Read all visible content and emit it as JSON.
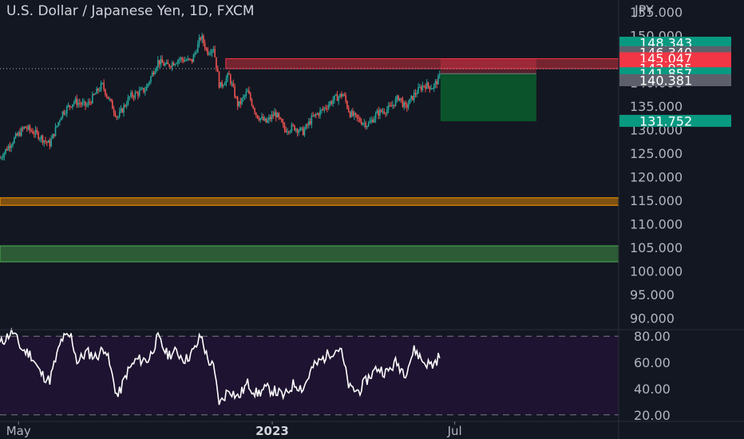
{
  "title": "U.S. Dollar / Japanese Yen, 1D, FXCM",
  "currency": "JPY",
  "colors": {
    "background": "#131722",
    "up": "#26a69a",
    "down": "#ef5350",
    "rsi_line": "#ffffff",
    "rsi_band": "#1e1330",
    "zone_orange": "#ff9800",
    "zone_green": "#4caf50",
    "badge_green": "#089981",
    "badge_red": "#f23645",
    "badge_gray": "#5d606b"
  },
  "chart_data": {
    "type": "candlestick",
    "title": "U.S. Dollar / Japanese Yen, 1D, FXCM",
    "ylim": [
      87.5,
      157.5
    ],
    "y_ticks": [
      "155.000",
      "150.000",
      "145.000",
      "140.000",
      "135.000",
      "130.000",
      "125.000",
      "120.000",
      "115.000",
      "110.000",
      "105.000",
      "100.000",
      "95.000",
      "90.000"
    ],
    "x_labels": [
      {
        "label": "May",
        "pos": 0.03,
        "bold": false
      },
      {
        "label": "2023",
        "pos": 0.44,
        "bold": true
      },
      {
        "label": "Jul",
        "pos": 0.735,
        "bold": false
      }
    ],
    "close_path": [
      {
        "t": 0.0,
        "v": 124.0
      },
      {
        "t": 0.02,
        "v": 127.5
      },
      {
        "t": 0.04,
        "v": 130.5
      },
      {
        "t": 0.06,
        "v": 129.0
      },
      {
        "t": 0.08,
        "v": 126.8
      },
      {
        "t": 0.1,
        "v": 133.5
      },
      {
        "t": 0.12,
        "v": 136.0
      },
      {
        "t": 0.14,
        "v": 135.0
      },
      {
        "t": 0.165,
        "v": 139.5
      },
      {
        "t": 0.19,
        "v": 132.5
      },
      {
        "t": 0.21,
        "v": 137.0
      },
      {
        "t": 0.235,
        "v": 138.5
      },
      {
        "t": 0.255,
        "v": 144.5
      },
      {
        "t": 0.27,
        "v": 143.5
      },
      {
        "t": 0.29,
        "v": 145.0
      },
      {
        "t": 0.31,
        "v": 144.5
      },
      {
        "t": 0.325,
        "v": 149.8
      },
      {
        "t": 0.335,
        "v": 146.5
      },
      {
        "t": 0.345,
        "v": 147.5
      },
      {
        "t": 0.355,
        "v": 139.0
      },
      {
        "t": 0.37,
        "v": 141.5
      },
      {
        "t": 0.385,
        "v": 135.0
      },
      {
        "t": 0.4,
        "v": 138.0
      },
      {
        "t": 0.415,
        "v": 133.0
      },
      {
        "t": 0.43,
        "v": 131.5
      },
      {
        "t": 0.445,
        "v": 133.5
      },
      {
        "t": 0.46,
        "v": 130.0
      },
      {
        "t": 0.475,
        "v": 130.5
      },
      {
        "t": 0.49,
        "v": 129.5
      },
      {
        "t": 0.505,
        "v": 132.5
      },
      {
        "t": 0.52,
        "v": 134.0
      },
      {
        "t": 0.54,
        "v": 136.5
      },
      {
        "t": 0.555,
        "v": 137.5
      },
      {
        "t": 0.565,
        "v": 133.5
      },
      {
        "t": 0.58,
        "v": 132.0
      },
      {
        "t": 0.595,
        "v": 131.0
      },
      {
        "t": 0.61,
        "v": 133.5
      },
      {
        "t": 0.63,
        "v": 134.5
      },
      {
        "t": 0.645,
        "v": 137.0
      },
      {
        "t": 0.655,
        "v": 134.5
      },
      {
        "t": 0.67,
        "v": 137.5
      },
      {
        "t": 0.685,
        "v": 139.5
      },
      {
        "t": 0.7,
        "v": 139.0
      },
      {
        "t": 0.712,
        "v": 141.4
      }
    ],
    "rsi": {
      "ylim": [
        15,
        85
      ],
      "levels": [
        80,
        20
      ],
      "ticks": [
        "80.00",
        "60.00",
        "40.00",
        "20.00"
      ],
      "path": [
        {
          "t": 0.0,
          "v": 74
        },
        {
          "t": 0.02,
          "v": 84
        },
        {
          "t": 0.035,
          "v": 70
        },
        {
          "t": 0.05,
          "v": 66
        },
        {
          "t": 0.065,
          "v": 52
        },
        {
          "t": 0.08,
          "v": 46
        },
        {
          "t": 0.1,
          "v": 78
        },
        {
          "t": 0.115,
          "v": 80
        },
        {
          "t": 0.125,
          "v": 60
        },
        {
          "t": 0.14,
          "v": 68
        },
        {
          "t": 0.155,
          "v": 64
        },
        {
          "t": 0.17,
          "v": 72
        },
        {
          "t": 0.19,
          "v": 33
        },
        {
          "t": 0.205,
          "v": 52
        },
        {
          "t": 0.22,
          "v": 62
        },
        {
          "t": 0.24,
          "v": 62
        },
        {
          "t": 0.255,
          "v": 79
        },
        {
          "t": 0.27,
          "v": 66
        },
        {
          "t": 0.285,
          "v": 68
        },
        {
          "t": 0.3,
          "v": 62
        },
        {
          "t": 0.315,
          "v": 70
        },
        {
          "t": 0.325,
          "v": 81
        },
        {
          "t": 0.335,
          "v": 63
        },
        {
          "t": 0.345,
          "v": 56
        },
        {
          "t": 0.355,
          "v": 28
        },
        {
          "t": 0.37,
          "v": 40
        },
        {
          "t": 0.385,
          "v": 33
        },
        {
          "t": 0.4,
          "v": 44
        },
        {
          "t": 0.415,
          "v": 36
        },
        {
          "t": 0.43,
          "v": 40
        },
        {
          "t": 0.445,
          "v": 38
        },
        {
          "t": 0.46,
          "v": 34
        },
        {
          "t": 0.475,
          "v": 44
        },
        {
          "t": 0.49,
          "v": 40
        },
        {
          "t": 0.505,
          "v": 56
        },
        {
          "t": 0.52,
          "v": 62
        },
        {
          "t": 0.535,
          "v": 68
        },
        {
          "t": 0.55,
          "v": 71
        },
        {
          "t": 0.565,
          "v": 40
        },
        {
          "t": 0.58,
          "v": 38
        },
        {
          "t": 0.595,
          "v": 48
        },
        {
          "t": 0.61,
          "v": 56
        },
        {
          "t": 0.625,
          "v": 52
        },
        {
          "t": 0.64,
          "v": 60
        },
        {
          "t": 0.655,
          "v": 52
        },
        {
          "t": 0.67,
          "v": 70
        },
        {
          "t": 0.685,
          "v": 60
        },
        {
          "t": 0.7,
          "v": 58
        },
        {
          "t": 0.712,
          "v": 66
        }
      ]
    },
    "zones": [
      {
        "name": "resistance-zone",
        "low": 142.925,
        "high": 145.047,
        "t0": 0.365,
        "t1": 1.0,
        "color": "#f23645"
      },
      {
        "name": "orange-support-zone",
        "low": 113.9,
        "high": 115.5,
        "t0": 0.0,
        "t1": 1.0,
        "color": "#ff9800"
      },
      {
        "name": "green-support-zone",
        "low": 101.9,
        "high": 105.3,
        "t0": 0.0,
        "t1": 1.0,
        "color": "#4caf50"
      }
    ],
    "position": {
      "entry": 141.857,
      "stop": 145.047,
      "target": 131.752,
      "t0": 0.712,
      "t1": 0.867
    },
    "dotted_level": 142.925,
    "price_badges": [
      {
        "label": "148.343",
        "value": 148.343,
        "color": "#089981"
      },
      {
        "label": "146.340",
        "value": 146.34,
        "color": "#5d606b"
      },
      {
        "label": "145.047",
        "value": 145.047,
        "color": "#f23645"
      },
      {
        "label": "142.925",
        "value": 142.925,
        "color": "#f23645"
      },
      {
        "label": "141.857",
        "value": 141.857,
        "color": "#089981"
      },
      {
        "label": "140.381",
        "value": 140.381,
        "color": "#5d606b"
      },
      {
        "label": "131.752",
        "value": 131.752,
        "color": "#089981"
      }
    ]
  }
}
